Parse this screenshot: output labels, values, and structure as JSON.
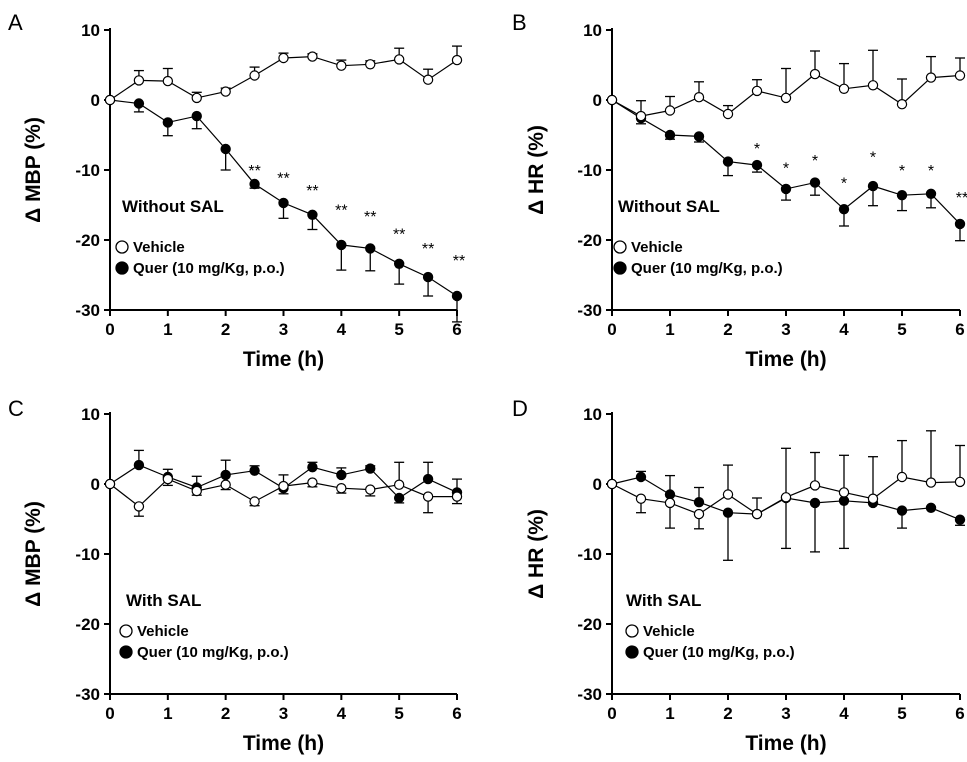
{
  "chart_data": [
    {
      "panel": "A",
      "type": "line",
      "ylabel": "Δ MBP (%)",
      "xlabel": "Time (h)",
      "xlim": [
        0,
        6
      ],
      "ylim": [
        -30,
        10
      ],
      "xticks": [
        "0",
        "1",
        "2",
        "3",
        "4",
        "5",
        "6"
      ],
      "yticks": [
        "10",
        "0",
        "-10",
        "-20",
        "-30"
      ],
      "annotation": "Without SAL",
      "x": [
        0,
        0.5,
        1,
        1.5,
        2,
        2.5,
        3,
        3.5,
        4,
        4.5,
        5,
        5.5,
        6
      ],
      "series": [
        {
          "name": "Vehicle",
          "marker": "open",
          "values": [
            0,
            2.8,
            2.7,
            0.3,
            1.2,
            3.5,
            6.0,
            6.2,
            4.9,
            5.1,
            5.8,
            2.9,
            5.7
          ],
          "errors": [
            0,
            1.4,
            1.8,
            0.8,
            0.5,
            1.2,
            0.7,
            0.4,
            0.8,
            0.5,
            1.6,
            1.5,
            2.0
          ]
        },
        {
          "name": "Quer (10 mg/Kg, p.o.)",
          "marker": "filled",
          "values": [
            0,
            -0.5,
            -3.2,
            -2.3,
            -7.0,
            -12.0,
            -14.7,
            -16.4,
            -20.7,
            -21.2,
            -23.4,
            -25.3,
            -28.0
          ],
          "errors": [
            0,
            1.2,
            1.9,
            1.8,
            3.0,
            0.6,
            2.2,
            2.1,
            3.6,
            3.2,
            2.9,
            2.7,
            3.7
          ],
          "significance": [
            "",
            "",
            "",
            "",
            "",
            "**",
            "**",
            "**",
            "**",
            "**",
            "**",
            "**",
            "**"
          ]
        }
      ]
    },
    {
      "panel": "B",
      "type": "line",
      "ylabel": "Δ HR (%)",
      "xlabel": "Time (h)",
      "xlim": [
        0,
        6
      ],
      "ylim": [
        -30,
        10
      ],
      "xticks": [
        "0",
        "1",
        "2",
        "3",
        "4",
        "5",
        "6"
      ],
      "yticks": [
        "10",
        "0",
        "-10",
        "-20",
        "-30"
      ],
      "annotation": "Without SAL",
      "x": [
        0,
        0.5,
        1,
        1.5,
        2,
        2.5,
        3,
        3.5,
        4,
        4.5,
        5,
        5.5,
        6
      ],
      "series": [
        {
          "name": "Vehicle",
          "marker": "open",
          "values": [
            0,
            -2.3,
            -1.5,
            0.4,
            -2.0,
            1.3,
            0.3,
            3.7,
            1.6,
            2.1,
            -0.6,
            3.2,
            3.5
          ],
          "errors": [
            0,
            2.2,
            2.0,
            2.2,
            1.2,
            1.6,
            4.2,
            3.3,
            3.6,
            5.0,
            3.6,
            3.0,
            2.5
          ]
        },
        {
          "name": "Quer (10 mg/Kg, p.o.)",
          "marker": "filled",
          "values": [
            0,
            -2.6,
            -5.0,
            -5.2,
            -8.8,
            -9.3,
            -12.7,
            -11.8,
            -15.6,
            -12.3,
            -13.6,
            -13.4,
            -17.7
          ],
          "errors": [
            0,
            0.8,
            0.6,
            0.8,
            2.0,
            1.0,
            1.6,
            1.8,
            2.4,
            2.8,
            2.2,
            2.0,
            2.4
          ],
          "significance": [
            "",
            "",
            "",
            "",
            "",
            "*",
            "*",
            "*",
            "*",
            "*",
            "*",
            "*",
            "**"
          ]
        }
      ]
    },
    {
      "panel": "C",
      "type": "line",
      "ylabel": "Δ MBP (%)",
      "xlabel": "Time (h)",
      "xlim": [
        0,
        6
      ],
      "ylim": [
        -30,
        10
      ],
      "xticks": [
        "0",
        "1",
        "2",
        "3",
        "4",
        "5",
        "6"
      ],
      "yticks": [
        "10",
        "0",
        "-10",
        "-20",
        "-30"
      ],
      "annotation": "With SAL",
      "x": [
        0,
        0.5,
        1,
        1.5,
        2,
        2.5,
        3,
        3.5,
        4,
        4.5,
        5,
        5.5,
        6
      ],
      "series": [
        {
          "name": "Vehicle",
          "marker": "open",
          "values": [
            0,
            -3.2,
            0.7,
            -1.0,
            -0.1,
            -2.5,
            -0.3,
            0.2,
            -0.6,
            -0.8,
            -0.1,
            -1.8,
            -1.8
          ],
          "errors": [
            0,
            1.4,
            0.9,
            0.6,
            0.7,
            0.6,
            1.6,
            0.6,
            0.7,
            0.9,
            3.2,
            2.3,
            1.0
          ]
        },
        {
          "name": "Quer (10 mg/Kg, p.o.)",
          "marker": "filled",
          "values": [
            0,
            2.7,
            1.0,
            -0.5,
            1.3,
            1.9,
            -0.6,
            2.4,
            1.3,
            2.2,
            -2.0,
            0.7,
            -1.2
          ],
          "errors": [
            0,
            2.1,
            1.1,
            1.6,
            2.1,
            0.7,
            0.8,
            0.7,
            1.0,
            0.4,
            0.7,
            2.4,
            1.9
          ]
        }
      ]
    },
    {
      "panel": "D",
      "type": "line",
      "ylabel": "Δ HR (%)",
      "xlabel": "Time (h)",
      "xlim": [
        0,
        6
      ],
      "ylim": [
        -30,
        10
      ],
      "xticks": [
        "0",
        "1",
        "2",
        "3",
        "4",
        "5",
        "6"
      ],
      "yticks": [
        "10",
        "0",
        "-10",
        "-20",
        "-30"
      ],
      "annotation": "With SAL",
      "x": [
        0,
        0.5,
        1,
        1.5,
        2,
        2.5,
        3,
        3.5,
        4,
        4.5,
        5,
        5.5,
        6
      ],
      "series": [
        {
          "name": "Vehicle",
          "marker": "open",
          "values": [
            0,
            -2.1,
            -2.7,
            -4.3,
            -1.5,
            -4.3,
            -1.9,
            -0.2,
            -1.2,
            -2.1,
            1.0,
            0.2,
            0.3
          ],
          "errors": [
            0,
            2.0,
            3.6,
            2.1,
            4.2,
            2.3,
            7.0,
            4.7,
            5.3,
            6.0,
            5.2,
            7.4,
            5.2
          ]
        },
        {
          "name": "Quer (10 mg/Kg, p.o.)",
          "marker": "filled",
          "values": [
            0,
            1.0,
            -1.5,
            -2.6,
            -4.1,
            -4.3,
            -2.0,
            -2.7,
            -2.4,
            -2.7,
            -3.8,
            -3.4,
            -5.1
          ],
          "errors": [
            0,
            0.8,
            2.7,
            2.1,
            6.8,
            0,
            7.2,
            7.0,
            6.8,
            0,
            2.5,
            0,
            0.8
          ]
        }
      ]
    }
  ]
}
